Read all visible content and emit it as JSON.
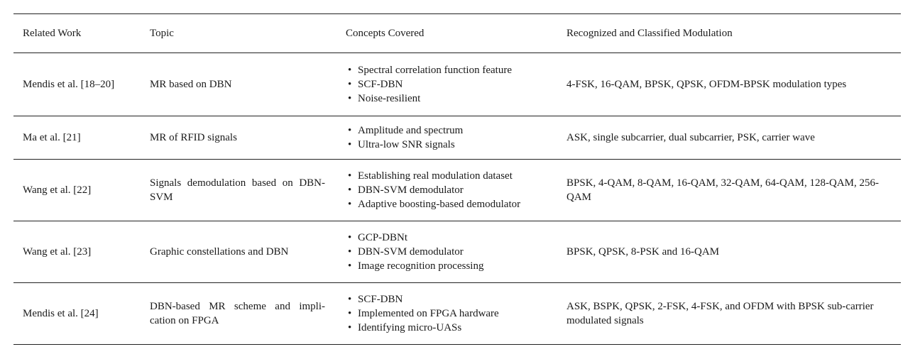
{
  "headers": {
    "related_work": "Related Work",
    "topic": "Topic",
    "concepts": "Concepts Covered",
    "modulation": "Recognized and Classified Modulation"
  },
  "rows": [
    {
      "related_work": "Mendis et al. [18–20]",
      "topic": "MR based on DBN",
      "concepts": [
        "Spectral correlation function feature",
        "SCF-DBN",
        "Noise-resilient"
      ],
      "modulation": "4-FSK, 16-QAM, BPSK, QPSK, OFDM-BPSK modulation types"
    },
    {
      "related_work": "Ma et al. [21]",
      "topic": "MR of RFID signals",
      "concepts": [
        "Amplitude and spectrum",
        "Ultra-low SNR signals"
      ],
      "modulation": "ASK, single subcarrier, dual subcarrier, PSK, carrier wave"
    },
    {
      "related_work": "Wang et al. [22]",
      "topic": "Signals demodulation based on DBN-SVM",
      "concepts": [
        "Establishing real modulation dataset",
        "DBN-SVM demodulator",
        "Adaptive boosting-based demodulator"
      ],
      "modulation": "BPSK, 4-QAM, 8-QAM, 16-QAM, 32-QAM, 64-QAM, 128-QAM, 256-QAM"
    },
    {
      "related_work": "Wang et al. [23]",
      "topic": "Graphic constellations and DBN",
      "concepts": [
        "GCP-DBNt",
        "DBN-SVM demodulator",
        "Image recognition processing"
      ],
      "modulation": "BPSK, QPSK, 8-PSK and 16-QAM"
    },
    {
      "related_work": "Mendis et al. [24]",
      "topic": "DBN-based MR scheme and impli-cation on FPGA",
      "concepts": [
        "SCF-DBN",
        "Implemented on FPGA hardware",
        "Identifying micro-UASs"
      ],
      "modulation": "ASK, BSPK, QPSK, 2-FSK, 4-FSK, and OFDM with BPSK sub-carrier modulated signals"
    }
  ]
}
